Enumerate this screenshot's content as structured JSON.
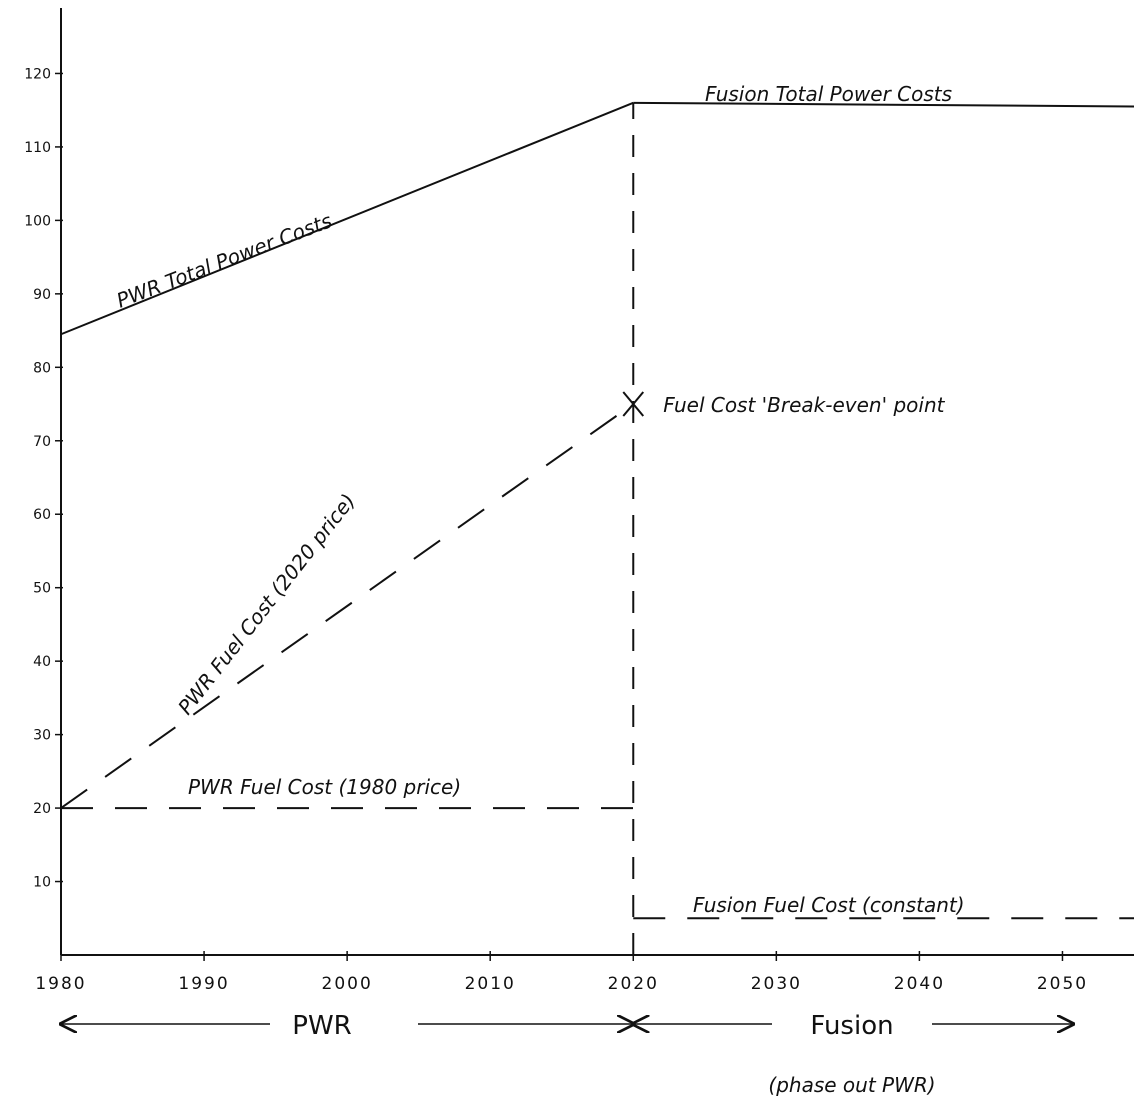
{
  "chart_data": {
    "type": "line",
    "title": "",
    "xlabel": "",
    "ylabel": "",
    "xlim": [
      1980,
      2055
    ],
    "ylim": [
      0,
      130
    ],
    "x_ticks": [
      1980,
      1990,
      2000,
      2010,
      2020,
      2030,
      2040,
      2050
    ],
    "y_ticks": [
      10,
      20,
      30,
      40,
      50,
      60,
      70,
      80,
      90,
      100,
      110,
      120
    ],
    "grid": false,
    "series": [
      {
        "name": "PWR Total Power Costs",
        "style": "solid",
        "points": [
          [
            1980,
            84.5
          ],
          [
            2020,
            116
          ]
        ]
      },
      {
        "name": "Fusion Total Power Costs",
        "style": "solid",
        "points": [
          [
            2020,
            116
          ],
          [
            2055,
            115.5
          ]
        ]
      },
      {
        "name": "PWR Fuel Cost (2020 price)",
        "style": "dashed",
        "points": [
          [
            1980,
            20
          ],
          [
            2020,
            75
          ]
        ]
      },
      {
        "name": "PWR Fuel Cost (1980 price)",
        "style": "dashed",
        "points": [
          [
            1980,
            20
          ],
          [
            2020,
            20
          ]
        ]
      },
      {
        "name": "Fusion Fuel Cost (constant)",
        "style": "dashed",
        "points": [
          [
            2020,
            5
          ],
          [
            2055,
            5
          ]
        ]
      }
    ],
    "vertical_line": {
      "x": 2020,
      "from": 0,
      "to": 116,
      "style": "dashed"
    },
    "marker": {
      "x": 2020,
      "y": 75,
      "symbol": "x",
      "label": "Fuel Cost 'Break-even' point"
    },
    "phases": [
      {
        "label": "PWR",
        "from": 1980,
        "to": 2020
      },
      {
        "label": "Fusion",
        "sublabel": "(phase out PWR)",
        "from": 2020,
        "to": 2055
      }
    ]
  }
}
